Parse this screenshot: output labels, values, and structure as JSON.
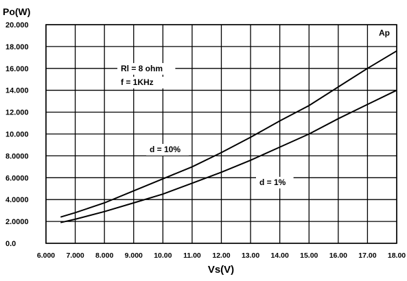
{
  "chart_data": {
    "type": "line",
    "title": "",
    "xlabel": "Vs(V)",
    "ylabel": "Po(W)",
    "xlim": [
      6.0,
      18.0
    ],
    "ylim": [
      0.0,
      20.0
    ],
    "x_ticks": [
      6.0,
      7.0,
      8.0,
      9.0,
      10.0,
      11.0,
      12.0,
      13.0,
      14.0,
      15.0,
      16.0,
      17.0,
      18.0
    ],
    "x_tick_labels": [
      "6.000",
      "7.000",
      "8.000",
      "9.000",
      "10.00",
      "11.00",
      "12.00",
      "13.00",
      "14.00",
      "15.00",
      "16.00",
      "17.00",
      "18.00"
    ],
    "y_ticks": [
      0,
      2,
      4,
      6,
      8,
      10,
      12,
      14,
      16,
      18,
      20
    ],
    "y_tick_labels": [
      "0.0",
      "2.0000",
      "4.0000",
      "6.0000",
      "8.0000",
      "10.000",
      "12.000",
      "14.000",
      "16.000",
      "18.000",
      "20.000"
    ],
    "grid": true,
    "series": [
      {
        "name": "d = 10%",
        "x": [
          6.5,
          7.0,
          8.0,
          9.0,
          10.0,
          11.0,
          12.0,
          13.0,
          14.0,
          15.0,
          16.0,
          17.0,
          18.0
        ],
        "y": [
          2.4,
          2.8,
          3.7,
          4.8,
          5.9,
          7.0,
          8.3,
          9.7,
          11.2,
          12.6,
          14.3,
          16.0,
          17.6
        ]
      },
      {
        "name": "d = 1%",
        "x": [
          6.5,
          7.0,
          8.0,
          9.0,
          10.0,
          11.0,
          12.0,
          13.0,
          14.0,
          15.0,
          16.0,
          17.0,
          18.0
        ],
        "y": [
          1.9,
          2.2,
          2.9,
          3.7,
          4.5,
          5.5,
          6.5,
          7.6,
          8.8,
          10.0,
          11.4,
          12.7,
          14.0
        ]
      }
    ],
    "annotations": {
      "conditions_line1": "Rl = 8 ohm",
      "conditions_line2": "f = 1KHz",
      "corner_mark": "Ap"
    }
  }
}
